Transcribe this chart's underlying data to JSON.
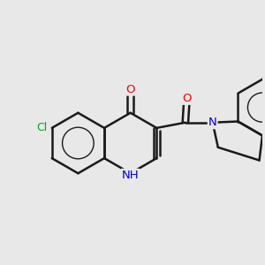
{
  "background_color": "#e8e8e8",
  "bond_color": "#1a1a1a",
  "bond_width": 1.8,
  "dbo": 0.055,
  "atom_colors": {
    "O": "#ff0000",
    "N": "#0000cc",
    "Cl": "#00aa00",
    "C": "#1a1a1a"
  },
  "font_size_atom": 9.5,
  "circle_lw": 1.0
}
